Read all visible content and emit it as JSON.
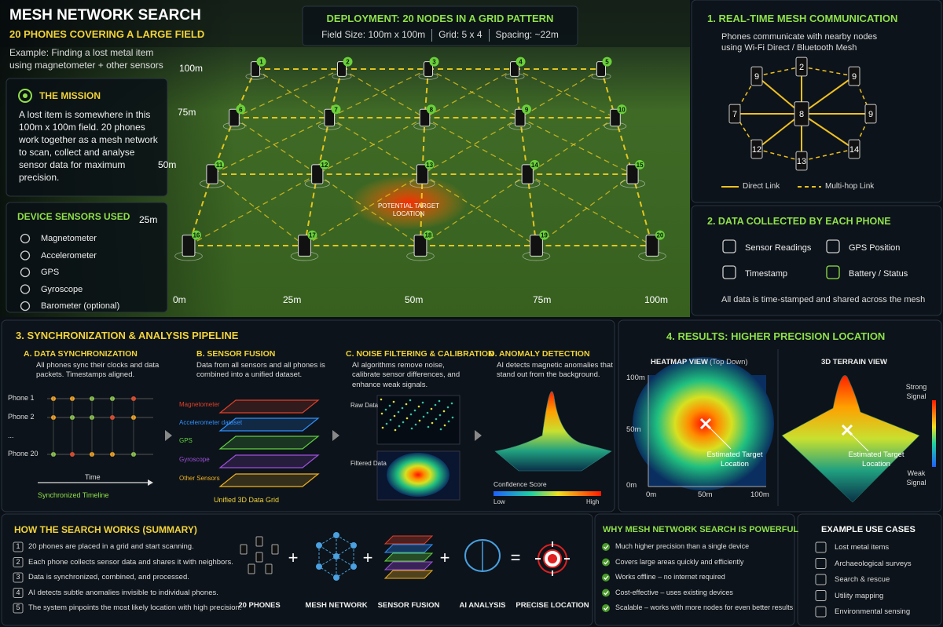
{
  "header": {
    "title": "MESH NETWORK SEARCH",
    "subtitle": "20 PHONES COVERING A LARGE FIELD",
    "example": "Example: Finding a lost metal item using magnetometer + other sensors"
  },
  "deployment": {
    "title": "DEPLOYMENT: 20 NODES IN A GRID PATTERN",
    "specs": [
      "Field Size: 100m x 100m",
      "Grid: 5 x 4",
      "Spacing: ~22m"
    ]
  },
  "mission": {
    "title": "THE MISSION",
    "text": "A lost item is somewhere in this 100m x 100m field. 20 phones work together as a mesh network to scan, collect and analyse sensor data for maximum precision."
  },
  "sensors": {
    "title": "DEVICE SENSORS USED",
    "items": [
      "Magnetometer",
      "Accelerometer",
      "GPS",
      "Gyroscope",
      "Barometer (optional)"
    ]
  },
  "field": {
    "y_labels": [
      "100m",
      "75m",
      "50m",
      "25m"
    ],
    "x_labels": [
      "0m",
      "25m",
      "50m",
      "75m",
      "100m"
    ],
    "nodes": [
      "1",
      "2",
      "3",
      "4",
      "5",
      "6",
      "7",
      "8",
      "9",
      "10",
      "11",
      "12",
      "13",
      "14",
      "15",
      "16",
      "17",
      "18",
      "19",
      "20"
    ],
    "target": "POTENTIAL TARGET LOCATION"
  },
  "mesh_comm": {
    "title": "1. REAL-TIME MESH COMMUNICATION",
    "text": "Phones communicate with nearby nodes using Wi-Fi Direct / Bluetooth Mesh",
    "nodes": [
      "9",
      "2",
      "9",
      "7",
      "8",
      "9",
      "12",
      "13",
      "14"
    ],
    "legend": [
      "Direct Link",
      "Multi-hop Link"
    ]
  },
  "data_collected": {
    "title": "2. DATA COLLECTED BY EACH PHONE",
    "items": [
      "Sensor Readings",
      "GPS Position",
      "Timestamp",
      "Battery / Status"
    ],
    "note": "All data is time-stamped and shared across the mesh"
  },
  "pipeline": {
    "title": "3. SYNCHRONIZATION & ANALYSIS PIPELINE",
    "sync": {
      "title": "A. DATA SYNCHRONIZATION",
      "text": "All phones sync their clocks and data packets. Timestamps aligned.",
      "phones": [
        "Phone 1",
        "Phone 2",
        "...",
        "Phone 20"
      ],
      "time": "Time",
      "caption": "Synchronized Timeline"
    },
    "fusion": {
      "title": "B. SENSOR FUSION",
      "text": "Data from all sensors and all phones is combined into a unified dataset.",
      "layers": [
        "Magnetometer",
        "Accelerometer dataset",
        "GPS",
        "Gyroscope",
        "Other Sensors"
      ],
      "caption": "Unified 3D Data Grid"
    },
    "filtering": {
      "title": "C. NOISE FILTERING & CALIBRATION",
      "text": "AI algorithms remove noise, calibrate sensor differences, and enhance weak signals.",
      "raw": "Raw Data",
      "filtered": "Filtered Data"
    },
    "anomaly": {
      "title": "D. ANOMALY DETECTION",
      "text": "AI detects magnetic anomalies that stand out from the background.",
      "scale": "Confidence Score",
      "low": "Low",
      "high": "High"
    }
  },
  "results": {
    "title": "4. RESULTS: HIGHER PRECISION LOCATION",
    "heatmap": {
      "title": "HEATMAP VIEW",
      "title_note": "(Top Down)",
      "y_labels": [
        "100m",
        "50m",
        "0m"
      ],
      "x_labels": [
        "0m",
        "50m",
        "100m"
      ],
      "marker": "Estimated Target Location"
    },
    "terrain": {
      "title": "3D TERRAIN VIEW",
      "strong": "Strong Signal",
      "weak": "Weak Signal",
      "marker": "Estimated Target Location"
    }
  },
  "summary": {
    "title": "HOW THE SEARCH WORKS (SUMMARY)",
    "steps": [
      {
        "number": "1",
        "text": "20 phones are placed in a grid and start scanning."
      },
      {
        "number": "2",
        "text": "Each phone collects sensor data and shares it with neighbors."
      },
      {
        "number": "3",
        "text": "Data is synchronized, combined, and processed."
      },
      {
        "number": "4",
        "text": "AI detects subtle anomalies invisible to individual phones."
      },
      {
        "number": "5",
        "text": "The system pinpoints the most likely location with high precision."
      }
    ],
    "flow": [
      "20 PHONES",
      "MESH NETWORK",
      "SENSOR FUSION",
      "AI ANALYSIS",
      "PRECISE LOCATION"
    ],
    "operators": [
      "+",
      "+",
      "+",
      "="
    ]
  },
  "benefits": {
    "title": "WHY MESH NETWORK SEARCH IS POWERFUL",
    "items": [
      "Much higher precision than a single device",
      "Covers large areas quickly and efficiently",
      "Works offline – no internet required",
      "Cost-effective – uses existing devices",
      "Scalable – works with more nodes for even better results"
    ]
  },
  "use_cases": {
    "title": "EXAMPLE USE CASES",
    "items": [
      "Lost metal items",
      "Archaeological surveys",
      "Search & rescue",
      "Utility mapping",
      "Environmental sensing"
    ]
  }
}
